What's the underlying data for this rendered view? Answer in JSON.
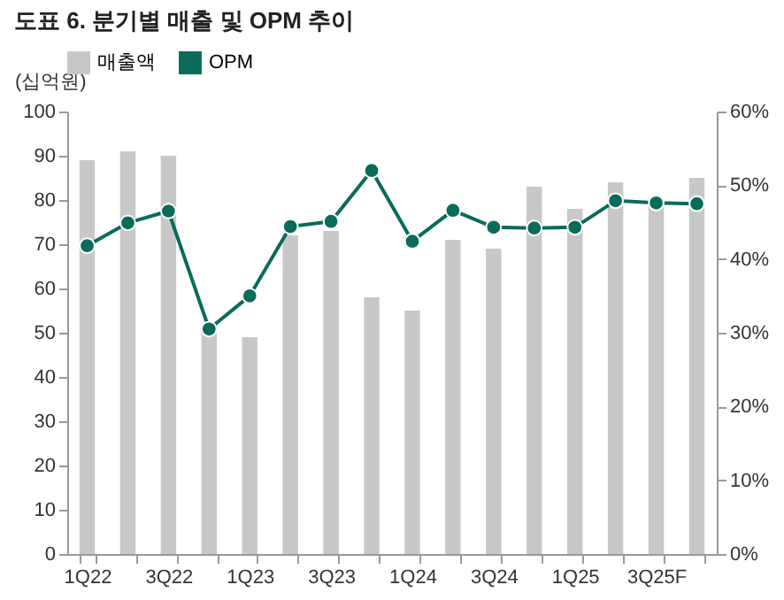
{
  "chart_data": {
    "type": "bar",
    "title": "도표 6. 분기별 매출 및 OPM 추이",
    "ylabel": "(십억원)",
    "categories": [
      "1Q22",
      null,
      "3Q22",
      null,
      "1Q23",
      null,
      "3Q23",
      null,
      "1Q24",
      null,
      "3Q24",
      null,
      "1Q25",
      null,
      "3Q25F",
      null
    ],
    "series": [
      {
        "name": "매출액",
        "color": "#c8c8c8",
        "values": [
          89,
          91,
          90,
          51,
          49,
          72,
          73,
          58,
          55,
          71,
          69,
          83,
          78,
          84,
          80,
          85
        ]
      },
      {
        "name": "OPM",
        "type": "line",
        "axis": "y2",
        "color": "#0b6b5b",
        "marker": "circle",
        "values": [
          41.8,
          44.9,
          46.5,
          30.5,
          35.0,
          44.4,
          45.1,
          52.0,
          42.4,
          46.6,
          44.3,
          44.2,
          44.3,
          47.9,
          47.6,
          47.5
        ]
      }
    ],
    "ylim": [
      0,
      100
    ],
    "yticks": [
      0,
      10,
      20,
      30,
      40,
      50,
      60,
      70,
      80,
      90,
      100
    ],
    "y2lim": [
      0,
      60
    ],
    "y2ticks": [
      {
        "value": 0,
        "label": "0%"
      },
      {
        "value": 10,
        "label": "10%"
      },
      {
        "value": 20,
        "label": "20%"
      },
      {
        "value": 30,
        "label": "30%"
      },
      {
        "value": 40,
        "label": "40%"
      },
      {
        "value": 50,
        "label": "50%"
      },
      {
        "value": 60,
        "label": "60%"
      }
    ],
    "legend": "top",
    "grid": false
  }
}
